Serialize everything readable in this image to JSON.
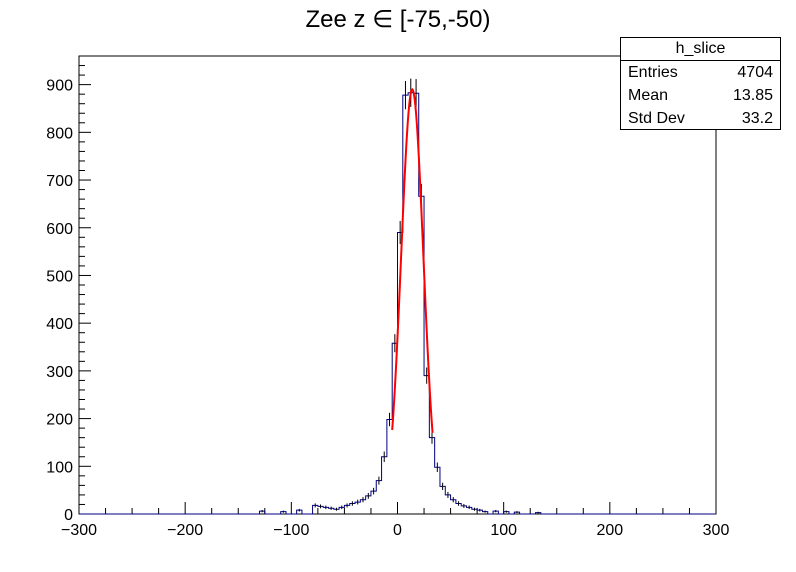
{
  "chart_data": {
    "type": "histogram",
    "title": "Zee z ∈ [-75,-50)",
    "xlim": [
      -300,
      300
    ],
    "ylim": [
      0,
      960
    ],
    "x_ticks": [
      -300,
      -200,
      -100,
      0,
      100,
      200,
      300
    ],
    "y_ticks": [
      0,
      100,
      200,
      300,
      400,
      500,
      600,
      700,
      800,
      900
    ],
    "bin_width": 5,
    "bins_x_low": [
      -45,
      -40,
      -35,
      -30,
      -25,
      -20,
      -15,
      -10,
      -5,
      0,
      5,
      10,
      15,
      20,
      25,
      30,
      35,
      40,
      45,
      50,
      55,
      60,
      65,
      70,
      75,
      80
    ],
    "bins_values": [
      22,
      25,
      30,
      38,
      48,
      70,
      120,
      198,
      358,
      590,
      878,
      883,
      882,
      666,
      290,
      160,
      98,
      58,
      40,
      30,
      22,
      17,
      14,
      10,
      8,
      5
    ],
    "tails": [
      {
        "x": -80,
        "y": 18
      },
      {
        "x": -75,
        "y": 16
      },
      {
        "x": -70,
        "y": 14
      },
      {
        "x": -65,
        "y": 12
      },
      {
        "x": -60,
        "y": 10
      },
      {
        "x": -55,
        "y": 14
      },
      {
        "x": -50,
        "y": 18
      },
      {
        "x": -130,
        "y": 6
      },
      {
        "x": -110,
        "y": 5
      },
      {
        "x": -95,
        "y": 8
      },
      {
        "x": 90,
        "y": 6
      },
      {
        "x": 100,
        "y": 5
      },
      {
        "x": 110,
        "y": 4
      },
      {
        "x": 130,
        "y": 3
      }
    ],
    "fit_curve": {
      "color": "#ff0000",
      "x_range": [
        -5,
        33
      ],
      "amplitude": 890,
      "mean": 13.9,
      "sigma": 10.5
    },
    "line_color": "#000080",
    "grid": false,
    "legend": {
      "position": "top-right",
      "name": "h_slice",
      "entries": [
        {
          "label": "Entries",
          "value": "4704"
        },
        {
          "label": "Mean",
          "value": "13.85"
        },
        {
          "label": "Std Dev",
          "value": "33.2"
        }
      ]
    }
  }
}
